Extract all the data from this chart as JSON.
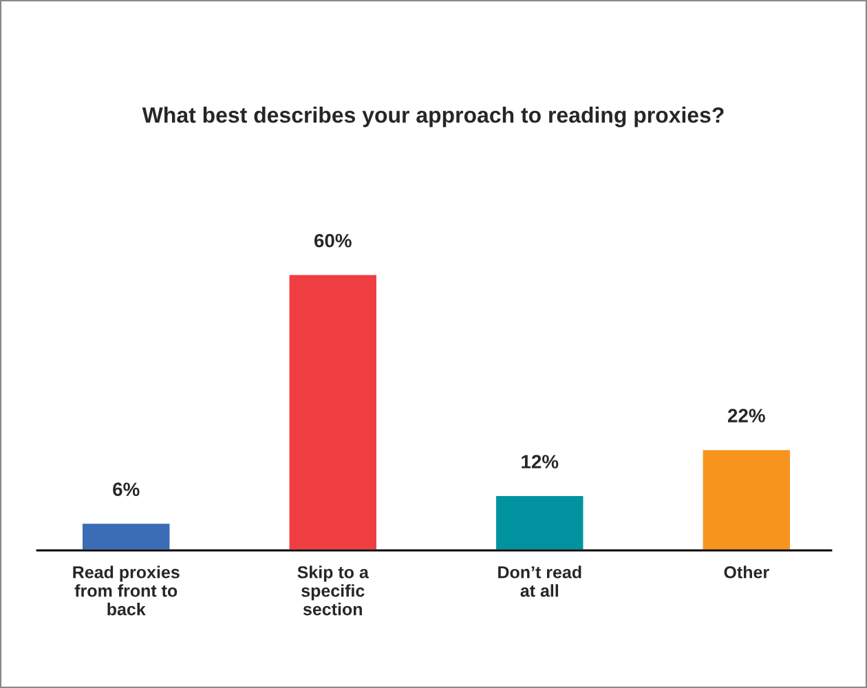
{
  "chart_data": {
    "type": "bar",
    "title": "What best describes your approach to reading proxies?",
    "categories": [
      "Read proxies\nfrom front to\nback",
      "Skip to a\nspecific\nsection",
      "Don’t read\nat all",
      "Other"
    ],
    "values": [
      6,
      60,
      12,
      22
    ],
    "value_labels": [
      "6%",
      "60%",
      "12%",
      "22%"
    ],
    "colors": [
      "#3a6db5",
      "#ef3e42",
      "#00939f",
      "#f7941d"
    ],
    "grid": false,
    "legend": false
  }
}
